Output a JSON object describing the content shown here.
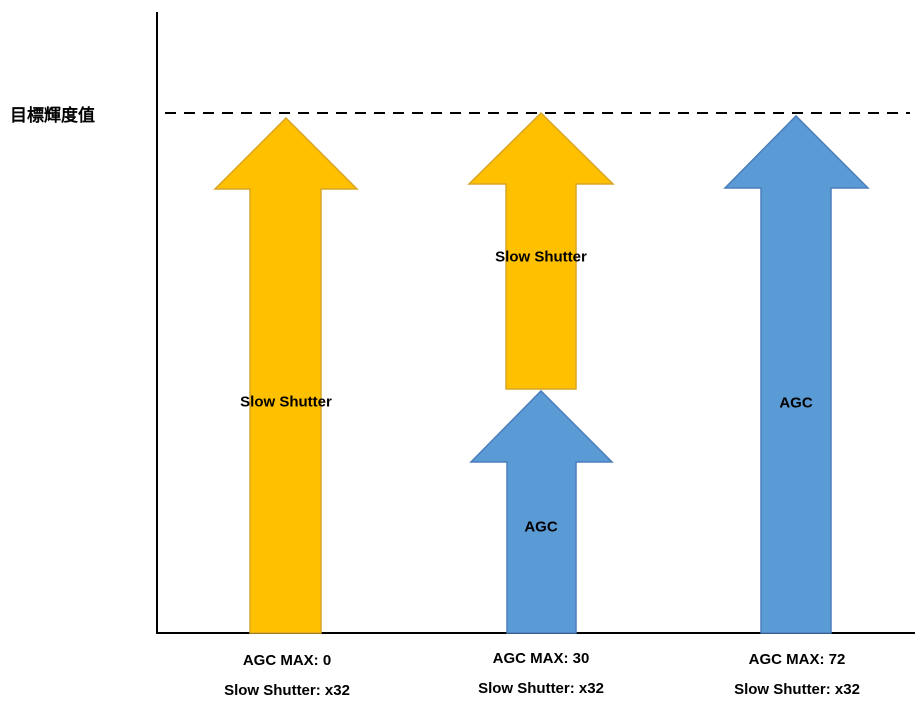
{
  "reference_label": "目標輝度值",
  "colors": {
    "slow_shutter": "#FFC000",
    "slow_shutter_border": "#D9A526",
    "agc": "#5B9BD5",
    "agc_border": "#4A7EBB",
    "axis": "#000000"
  },
  "columns": [
    {
      "agc_label": "AGC MAX: 0",
      "shutter_label": "Slow Shutter: x32",
      "segments": [
        {
          "kind": "slow_shutter",
          "text": "Slow Shutter"
        }
      ]
    },
    {
      "agc_label": "AGC MAX: 30",
      "shutter_label": "Slow Shutter: x32",
      "segments": [
        {
          "kind": "agc",
          "text": "AGC"
        },
        {
          "kind": "slow_shutter",
          "text": "Slow Shutter"
        }
      ]
    },
    {
      "agc_label": "AGC MAX: 72",
      "shutter_label": "Slow Shutter: x32",
      "segments": [
        {
          "kind": "agc",
          "text": "AGC"
        }
      ]
    }
  ]
}
